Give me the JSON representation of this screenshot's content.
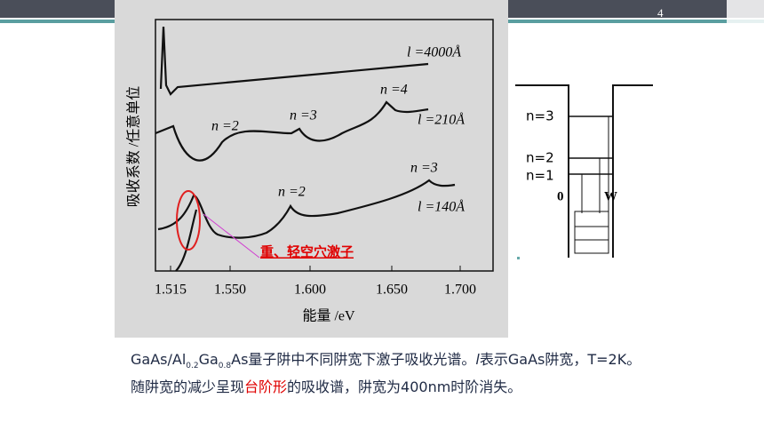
{
  "slide_number": "4",
  "figure": {
    "y_axis_label": "吸收系数 /任意单位",
    "x_axis_label": "能量 /eV",
    "x_ticks": [
      "1.515",
      "1.550",
      "1.600",
      "1.650",
      "1.700"
    ],
    "curve_labels": [
      "l =4000Å",
      "n =4",
      "n =2",
      "n =3",
      "l =210Å",
      "n =3",
      "n =2",
      "l =140Å"
    ],
    "annotation": "重、轻空穴激子"
  },
  "well_diagram": {
    "levels": [
      "n=3",
      "n=2",
      "n=1"
    ],
    "axis_labels": [
      "0",
      "W"
    ]
  },
  "caption": {
    "segments": [
      "GaAs/Al",
      "0.2",
      "Ga",
      "0.8",
      "As量子阱中不同阱宽下激子吸收光谱。",
      "l",
      "表示GaAs阱宽，T=2K。随阱宽的减少呈现",
      "台阶形",
      "的吸收谱，阱宽为400nm时阶消失。"
    ]
  }
}
